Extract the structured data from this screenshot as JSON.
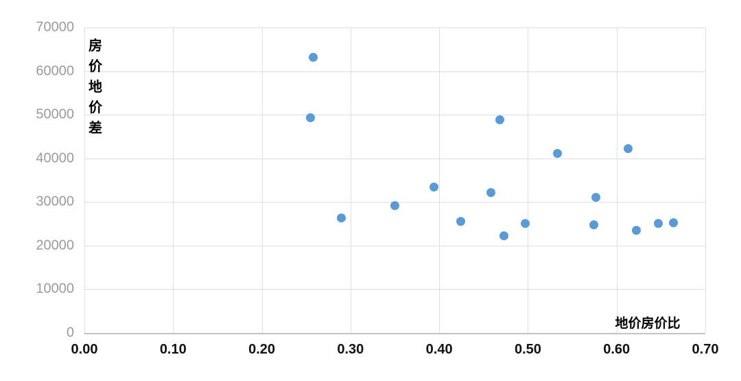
{
  "chart_data": {
    "type": "scatter",
    "title": "",
    "xlabel": "地价房价比",
    "ylabel": "房价地价差",
    "ylabel_vertical_chars": [
      "房",
      "价",
      "地",
      "价",
      "差"
    ],
    "xlim": [
      0.0,
      0.7
    ],
    "ylim": [
      0,
      70000
    ],
    "x_ticks": [
      "0.00",
      "0.10",
      "0.20",
      "0.30",
      "0.40",
      "0.50",
      "0.60",
      "0.70"
    ],
    "y_ticks": [
      "0",
      "10000",
      "20000",
      "30000",
      "40000",
      "50000",
      "60000",
      "70000"
    ],
    "grid": true,
    "legend_position": "none",
    "marker_color": "#5B9BD5",
    "points": [
      [
        0.258,
        63200
      ],
      [
        0.255,
        49300
      ],
      [
        0.29,
        26400
      ],
      [
        0.35,
        29200
      ],
      [
        0.394,
        33400
      ],
      [
        0.424,
        25500
      ],
      [
        0.458,
        32100
      ],
      [
        0.468,
        48900
      ],
      [
        0.473,
        22200
      ],
      [
        0.497,
        25100
      ],
      [
        0.533,
        41200
      ],
      [
        0.574,
        24700
      ],
      [
        0.577,
        31000
      ],
      [
        0.613,
        42200
      ],
      [
        0.622,
        23500
      ],
      [
        0.647,
        25100
      ],
      [
        0.664,
        25200
      ]
    ]
  },
  "colors": {
    "background": "#ffffff",
    "gridline": "#dedede",
    "axis_line": "#c2c2c2",
    "y_tick_text": "#9b9b9b",
    "x_tick_text": "#111111",
    "axis_title_text": "#000000",
    "marker": "#5B9BD5"
  }
}
